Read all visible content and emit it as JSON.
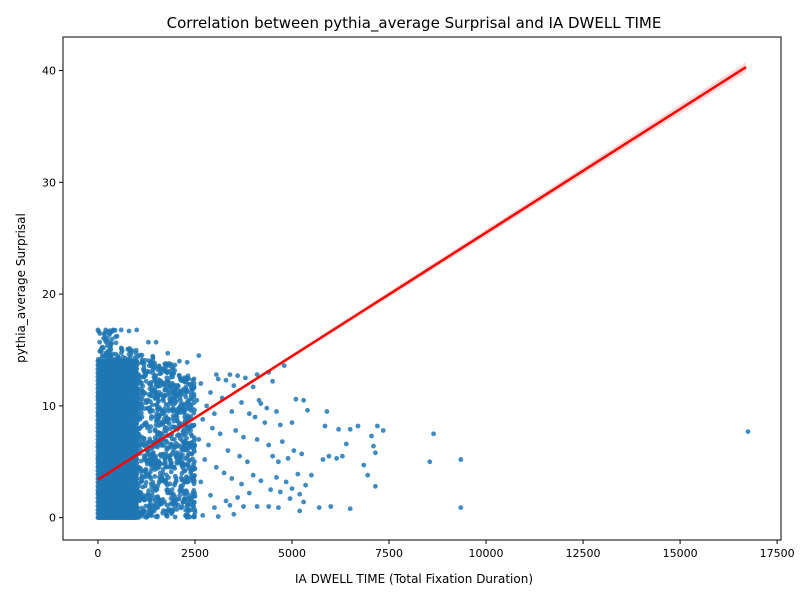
{
  "chart_data": {
    "type": "scatter",
    "title": "Correlation between pythia_average Surprisal and IA DWELL TIME",
    "xlabel": "IA DWELL TIME (Total Fixation Duration)",
    "ylabel": "pythia_average Surprisal",
    "xlim": [
      -900,
      17600
    ],
    "ylim": [
      -2,
      43
    ],
    "xticks": [
      0,
      2500,
      5000,
      7500,
      10000,
      12500,
      15000,
      17500
    ],
    "xtick_labels": [
      "0",
      "2500",
      "5000",
      "7500",
      "10000",
      "12500",
      "15000",
      "17500"
    ],
    "yticks": [
      0,
      10,
      20,
      30,
      40
    ],
    "ytick_labels": [
      "0",
      "10",
      "20",
      "30",
      "40"
    ],
    "grid": false,
    "point_color": "#1f77b4",
    "fit_color": "#ff0000",
    "regression": {
      "intercept": 3.4,
      "slope": 0.00221,
      "x_range": [
        0,
        16700
      ]
    },
    "dense_region": [
      {
        "x_max": 500,
        "y_max": 16.8
      },
      {
        "x_max": 1000,
        "y_max": 15.6
      },
      {
        "x_max": 1500,
        "y_max": 14.6
      },
      {
        "x_max": 2000,
        "y_max": 13.8
      },
      {
        "x_max": 2500,
        "y_max": 12.8
      }
    ],
    "points": [
      [
        0,
        16.8
      ],
      [
        200,
        16.8
      ],
      [
        400,
        16.8
      ],
      [
        600,
        16.8
      ],
      [
        800,
        16.7
      ],
      [
        1000,
        16.8
      ],
      [
        1500,
        15.7
      ],
      [
        1300,
        15.7
      ],
      [
        1800,
        14.7
      ],
      [
        2600,
        14.5
      ],
      [
        2100,
        14.0
      ],
      [
        2300,
        13.9
      ],
      [
        3050,
        12.8
      ],
      [
        3400,
        12.8
      ],
      [
        3600,
        12.7
      ],
      [
        3800,
        12.5
      ],
      [
        4400,
        13.0
      ],
      [
        4800,
        13.6
      ],
      [
        4100,
        12.8
      ],
      [
        3100,
        12.4
      ],
      [
        3300,
        12.3
      ],
      [
        3500,
        11.8
      ],
      [
        4000,
        11.7
      ],
      [
        4500,
        12.2
      ],
      [
        5100,
        10.6
      ],
      [
        5300,
        10.5
      ],
      [
        2900,
        11.2
      ],
      [
        3200,
        10.7
      ],
      [
        3700,
        10.3
      ],
      [
        4150,
        10.5
      ],
      [
        4200,
        10.2
      ],
      [
        4350,
        9.8
      ],
      [
        4600,
        9.5
      ],
      [
        5400,
        9.6
      ],
      [
        5900,
        9.5
      ],
      [
        2800,
        10.0
      ],
      [
        3000,
        9.3
      ],
      [
        3450,
        9.5
      ],
      [
        3900,
        9.3
      ],
      [
        4050,
        9.0
      ],
      [
        4300,
        8.5
      ],
      [
        4700,
        8.3
      ],
      [
        5000,
        8.5
      ],
      [
        5850,
        8.2
      ],
      [
        6200,
        7.9
      ],
      [
        6500,
        7.9
      ],
      [
        6700,
        8.2
      ],
      [
        7200,
        8.2
      ],
      [
        7350,
        7.8
      ],
      [
        7050,
        7.3
      ],
      [
        6400,
        6.6
      ],
      [
        2950,
        8.0
      ],
      [
        3150,
        7.5
      ],
      [
        3550,
        7.8
      ],
      [
        3750,
        7.2
      ],
      [
        4100,
        7.0
      ],
      [
        4400,
        6.5
      ],
      [
        4750,
        6.8
      ],
      [
        5050,
        6.0
      ],
      [
        5250,
        5.7
      ],
      [
        5950,
        5.5
      ],
      [
        6150,
        5.3
      ],
      [
        6300,
        5.5
      ],
      [
        5800,
        5.2
      ],
      [
        4500,
        5.5
      ],
      [
        4650,
        5.0
      ],
      [
        4900,
        5.3
      ],
      [
        3350,
        6.0
      ],
      [
        3650,
        5.5
      ],
      [
        3850,
        5.0
      ],
      [
        2850,
        6.5
      ],
      [
        3050,
        4.5
      ],
      [
        3250,
        4.0
      ],
      [
        3450,
        3.5
      ],
      [
        3700,
        3.0
      ],
      [
        4000,
        3.8
      ],
      [
        4200,
        3.3
      ],
      [
        4600,
        3.6
      ],
      [
        4850,
        3.2
      ],
      [
        5150,
        3.9
      ],
      [
        5350,
        2.9
      ],
      [
        5500,
        3.8
      ],
      [
        4450,
        2.5
      ],
      [
        4700,
        2.3
      ],
      [
        5000,
        2.6
      ],
      [
        5200,
        2.1
      ],
      [
        3900,
        2.2
      ],
      [
        3600,
        1.8
      ],
      [
        3300,
        1.5
      ],
      [
        2900,
        2.0
      ],
      [
        3000,
        0.9
      ],
      [
        3400,
        1.1
      ],
      [
        3750,
        1.0
      ],
      [
        4100,
        1.0
      ],
      [
        4400,
        1.0
      ],
      [
        4650,
        0.9
      ],
      [
        5200,
        0.6
      ],
      [
        5700,
        0.9
      ],
      [
        6000,
        1.0
      ],
      [
        6500,
        0.8
      ],
      [
        5300,
        1.4
      ],
      [
        4950,
        1.7
      ],
      [
        6850,
        4.7
      ],
      [
        6950,
        3.8
      ],
      [
        7150,
        2.8
      ],
      [
        7100,
        6.4
      ],
      [
        7150,
        5.8
      ],
      [
        8650,
        7.5
      ],
      [
        8550,
        5.0
      ],
      [
        9350,
        5.2
      ],
      [
        9350,
        0.9
      ],
      [
        16750,
        7.7
      ],
      [
        2700,
        0.2
      ],
      [
        3100,
        0.1
      ],
      [
        3500,
        0.3
      ],
      [
        2500,
        0.5
      ],
      [
        2650,
        3.2
      ],
      [
        2750,
        5.2
      ],
      [
        2600,
        7.0
      ],
      [
        2700,
        8.8
      ],
      [
        2550,
        10.5
      ],
      [
        2650,
        12.0
      ]
    ]
  }
}
